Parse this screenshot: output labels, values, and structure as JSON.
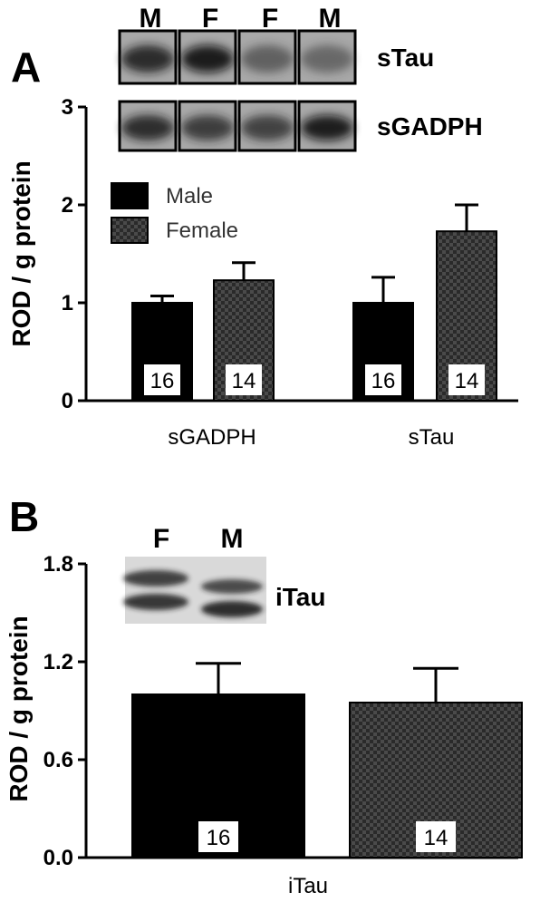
{
  "panels": {
    "A": {
      "letter": "A",
      "ylabel": "ROD / g protein",
      "blot": {
        "lane_labels": [
          "M",
          "F",
          "F",
          "M"
        ],
        "rows": [
          {
            "label": "sTau",
            "intensities": [
              0.82,
              0.92,
              0.35,
              0.28
            ]
          },
          {
            "label": "sGADPH",
            "intensities": [
              0.8,
              0.68,
              0.62,
              0.9
            ]
          }
        ]
      }
    },
    "B": {
      "letter": "B",
      "ylabel": "ROD / g protein",
      "blot": {
        "lane_labels": [
          "F",
          "M"
        ],
        "label": "iTau"
      }
    }
  },
  "chart_data": [
    {
      "type": "bar",
      "panel": "A",
      "title": "",
      "xlabel": "",
      "ylabel": "ROD / g protein",
      "categories": [
        "sGADPH",
        "sTau"
      ],
      "ylim": [
        0,
        3
      ],
      "yticks": [
        "0",
        "1",
        "2",
        "3"
      ],
      "series": [
        {
          "name": "Male",
          "values": [
            1.0,
            1.0
          ],
          "errors": [
            0.07,
            0.26
          ],
          "n": [
            "16",
            "16"
          ],
          "color": "#000000",
          "pattern": "solid"
        },
        {
          "name": "Female",
          "values": [
            1.23,
            1.73
          ],
          "errors": [
            0.18,
            0.27
          ],
          "n": [
            "14",
            "14"
          ],
          "color": "#555555",
          "pattern": "checker"
        }
      ],
      "legend": {
        "position": "top-left",
        "entries": [
          "Male",
          "Female"
        ]
      },
      "grid": false
    },
    {
      "type": "bar",
      "panel": "B",
      "title": "",
      "xlabel": "",
      "ylabel": "ROD / g protein",
      "categories": [
        "iTau"
      ],
      "ylim": [
        0,
        1.8
      ],
      "yticks": [
        "0.0",
        "0.6",
        "1.2",
        "1.8"
      ],
      "series": [
        {
          "values": [
            1.0
          ],
          "errors": [
            0.19
          ],
          "n": [
            "16"
          ],
          "color": "#000000",
          "pattern": "solid"
        },
        {
          "values": [
            0.95
          ],
          "errors": [
            0.21
          ],
          "n": [
            "14"
          ],
          "color": "#555555",
          "pattern": "checker"
        }
      ],
      "grid": false
    }
  ]
}
